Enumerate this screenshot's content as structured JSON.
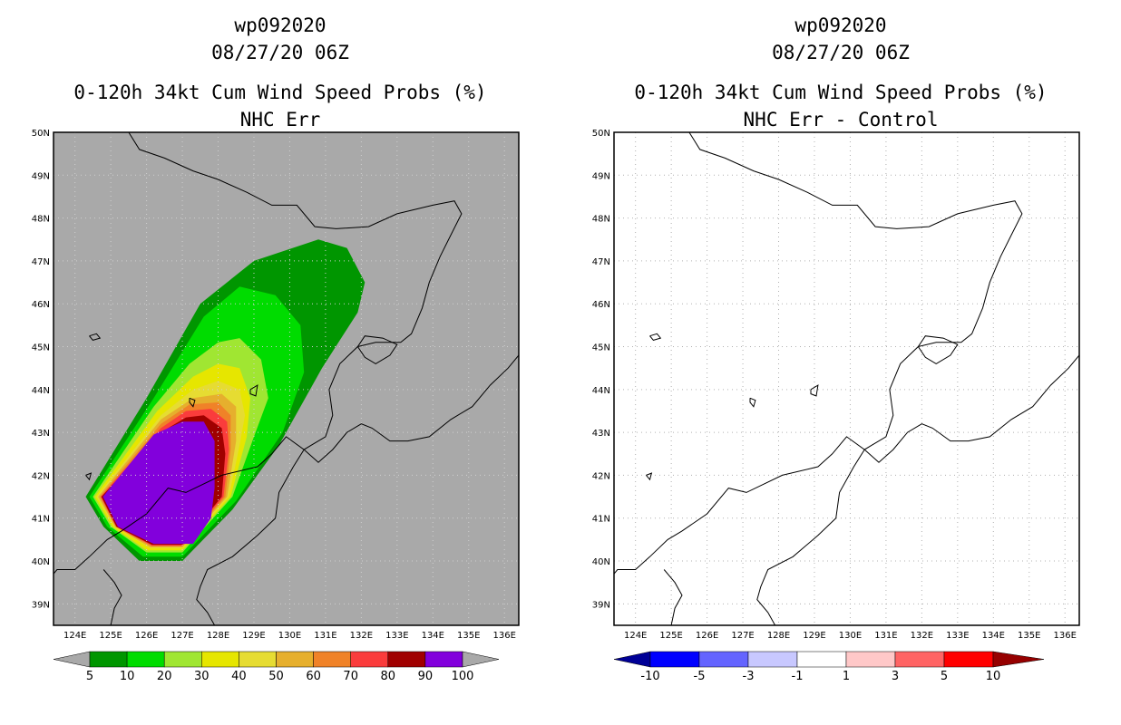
{
  "left_panel": {
    "title_line1": "wp092020",
    "title_line2": "08/27/20 06Z",
    "title_line3": "0-120h 34kt Cum Wind Speed Probs (%)",
    "title_line4": "NHC Err",
    "background": "#a9a9a9",
    "colorbar": {
      "colors": [
        "#009600",
        "#00dc00",
        "#a0e632",
        "#e6e600",
        "#e6dc32",
        "#e6af2d",
        "#f08228",
        "#fa3c3c",
        "#a00000",
        "#8200dc"
      ],
      "labels": [
        "5",
        "10",
        "20",
        "30",
        "40",
        "50",
        "60",
        "70",
        "80",
        "90",
        "100"
      ]
    }
  },
  "right_panel": {
    "title_line1": "wp092020",
    "title_line2": "08/27/20 06Z",
    "title_line3": "0-120h 34kt Cum Wind Speed Probs (%)",
    "title_line4": "NHC Err - Control",
    "background": "#ffffff",
    "colorbar": {
      "colors": [
        "#000096",
        "#0000ff",
        "#6464ff",
        "#c8c8ff",
        "#ffffff",
        "#ffc8c8",
        "#ff6464",
        "#ff0000",
        "#960000"
      ],
      "labels": [
        "-10",
        "-5",
        "-3",
        "-1",
        "1",
        "3",
        "5",
        "10"
      ]
    }
  },
  "map": {
    "lon_labels": [
      "124E",
      "125E",
      "126E",
      "127E",
      "128E",
      "129E",
      "130E",
      "131E",
      "132E",
      "133E",
      "134E",
      "135E",
      "136E"
    ],
    "lat_labels": [
      "39N",
      "40N",
      "41N",
      "42N",
      "43N",
      "44N",
      "45N",
      "46N",
      "47N",
      "48N",
      "49N",
      "50N"
    ]
  },
  "probability_contours": [
    {
      "min_pct": 5,
      "color": "#009600",
      "pts": [
        [
          124.3,
          41.5
        ],
        [
          126.0,
          43.8
        ],
        [
          127.5,
          46.0
        ],
        [
          129.0,
          47.0
        ],
        [
          130.8,
          47.5
        ],
        [
          131.6,
          47.3
        ],
        [
          132.1,
          46.5
        ],
        [
          131.9,
          45.8
        ],
        [
          130.9,
          44.5
        ],
        [
          129.7,
          42.7
        ],
        [
          128.4,
          41.2
        ],
        [
          127.0,
          40.0
        ],
        [
          125.8,
          40.0
        ],
        [
          124.8,
          40.8
        ]
      ]
    },
    {
      "min_pct": 10,
      "color": "#00dc00",
      "pts": [
        [
          124.4,
          41.5
        ],
        [
          126.2,
          43.8
        ],
        [
          127.6,
          45.7
        ],
        [
          128.6,
          46.4
        ],
        [
          129.6,
          46.2
        ],
        [
          130.3,
          45.5
        ],
        [
          130.4,
          44.4
        ],
        [
          129.8,
          43.0
        ],
        [
          128.5,
          41.4
        ],
        [
          127.0,
          40.1
        ],
        [
          125.9,
          40.1
        ],
        [
          124.9,
          40.8
        ]
      ]
    },
    {
      "min_pct": 20,
      "color": "#a0e632",
      "pts": [
        [
          124.5,
          41.5
        ],
        [
          126.2,
          43.6
        ],
        [
          127.2,
          44.6
        ],
        [
          128.0,
          45.1
        ],
        [
          128.6,
          45.2
        ],
        [
          129.2,
          44.7
        ],
        [
          129.4,
          43.8
        ],
        [
          129.0,
          42.9
        ],
        [
          128.4,
          41.5
        ],
        [
          127.0,
          40.2
        ],
        [
          126.0,
          40.2
        ],
        [
          125.0,
          40.8
        ]
      ]
    },
    {
      "min_pct": 30,
      "color": "#e6e600",
      "pts": [
        [
          124.55,
          41.5
        ],
        [
          126.3,
          43.5
        ],
        [
          127.3,
          44.3
        ],
        [
          128.0,
          44.6
        ],
        [
          128.6,
          44.5
        ],
        [
          128.9,
          43.8
        ],
        [
          128.8,
          42.9
        ],
        [
          128.35,
          41.5
        ],
        [
          127.0,
          40.25
        ],
        [
          126.0,
          40.25
        ],
        [
          125.05,
          40.8
        ]
      ]
    },
    {
      "min_pct": 40,
      "color": "#e6dc32",
      "pts": [
        [
          124.6,
          41.5
        ],
        [
          126.4,
          43.4
        ],
        [
          127.3,
          44.0
        ],
        [
          128.0,
          44.2
        ],
        [
          128.6,
          44.0
        ],
        [
          128.75,
          43.4
        ],
        [
          128.6,
          42.7
        ],
        [
          128.3,
          41.5
        ],
        [
          127.0,
          40.3
        ],
        [
          126.1,
          40.3
        ],
        [
          125.1,
          40.8
        ]
      ]
    },
    {
      "min_pct": 50,
      "color": "#e6af2d",
      "pts": [
        [
          124.65,
          41.5
        ],
        [
          126.4,
          43.3
        ],
        [
          127.3,
          43.8
        ],
        [
          128.1,
          43.9
        ],
        [
          128.5,
          43.6
        ],
        [
          128.5,
          42.8
        ],
        [
          128.25,
          41.5
        ],
        [
          127.0,
          40.32
        ],
        [
          126.1,
          40.32
        ],
        [
          125.12,
          40.8
        ]
      ]
    },
    {
      "min_pct": 60,
      "color": "#f08228",
      "pts": [
        [
          124.7,
          41.5
        ],
        [
          126.4,
          43.2
        ],
        [
          127.2,
          43.65
        ],
        [
          128.0,
          43.7
        ],
        [
          128.35,
          43.4
        ],
        [
          128.35,
          42.6
        ],
        [
          128.2,
          41.5
        ],
        [
          127.0,
          40.34
        ],
        [
          126.15,
          40.34
        ],
        [
          125.14,
          40.8
        ]
      ]
    },
    {
      "min_pct": 70,
      "color": "#fa3c3c",
      "pts": [
        [
          124.72,
          41.5
        ],
        [
          126.4,
          43.1
        ],
        [
          127.1,
          43.5
        ],
        [
          127.8,
          43.55
        ],
        [
          128.25,
          43.25
        ],
        [
          128.3,
          42.6
        ],
        [
          128.15,
          41.5
        ],
        [
          127.0,
          40.36
        ],
        [
          126.15,
          40.36
        ],
        [
          125.15,
          40.8
        ]
      ]
    },
    {
      "min_pct": 80,
      "color": "#a00000",
      "pts": [
        [
          124.74,
          41.5
        ],
        [
          126.4,
          43.0
        ],
        [
          127.1,
          43.35
        ],
        [
          127.6,
          43.4
        ],
        [
          128.1,
          43.1
        ],
        [
          128.2,
          42.5
        ],
        [
          128.1,
          41.5
        ],
        [
          127.0,
          40.38
        ],
        [
          126.15,
          40.38
        ],
        [
          125.16,
          40.8
        ]
      ]
    },
    {
      "min_pct": 90,
      "color": "#8200dc",
      "pts": [
        [
          124.78,
          41.5
        ],
        [
          126.2,
          42.95
        ],
        [
          127.0,
          43.25
        ],
        [
          127.6,
          43.25
        ],
        [
          127.9,
          42.8
        ],
        [
          127.9,
          41.7
        ],
        [
          127.8,
          41.0
        ],
        [
          127.3,
          40.4
        ],
        [
          126.2,
          40.4
        ],
        [
          125.2,
          40.8
        ]
      ]
    }
  ]
}
